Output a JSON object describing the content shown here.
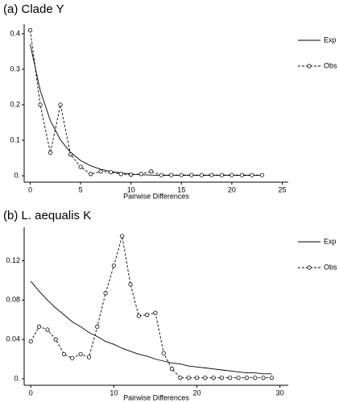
{
  "chart_data": [
    {
      "type": "line",
      "title": "(a) Clade Y",
      "x_label": "Pairwise Differences",
      "x": [
        0,
        1,
        2,
        3,
        4,
        5,
        6,
        7,
        8,
        9,
        10,
        11,
        12,
        13,
        14,
        15,
        16,
        17,
        18,
        19,
        20,
        21,
        22,
        23
      ],
      "xlim": [
        -0.6,
        25.6
      ],
      "xticks": [
        0,
        5,
        10,
        15,
        20,
        25
      ],
      "ylim": [
        -0.018,
        0.427
      ],
      "yticks": [
        {
          "value": 0,
          "label": "0."
        },
        0.1,
        0.2,
        0.3,
        0.4
      ],
      "series": [
        {
          "name": "Exp",
          "color": "#000000",
          "dashed": false,
          "markers": false,
          "values": [
            0.37,
            0.24,
            0.156,
            0.101,
            0.066,
            0.043,
            0.028,
            0.018,
            0.012,
            0.008,
            0.005,
            0.003,
            0.002,
            0.001,
            0.001,
            0.001,
            0.001,
            0.001,
            0.001,
            0.001,
            0.001,
            0.001,
            0.001,
            0.001
          ]
        },
        {
          "name": "Obs",
          "color": "#000000",
          "dashed": true,
          "markers": true,
          "values": [
            0.41,
            0.2,
            0.065,
            0.2,
            0.06,
            0.025,
            0.005,
            0.012,
            0.01,
            0.005,
            0.003,
            0.005,
            0.012,
            0.002,
            0.002,
            0.002,
            0.002,
            0.002,
            0.002,
            0.002,
            0.002,
            0.002,
            0.002,
            0.002
          ]
        }
      ]
    },
    {
      "type": "line",
      "title": "(b) L. aequalis K",
      "x_label": "Pairwise Differences",
      "x": [
        0,
        1,
        2,
        3,
        4,
        5,
        6,
        7,
        8,
        9,
        10,
        11,
        12,
        13,
        14,
        15,
        16,
        17,
        18,
        19,
        20,
        21,
        22,
        23,
        24,
        25,
        26,
        27,
        28,
        29
      ],
      "xlim": [
        -0.8,
        31
      ],
      "xticks": [
        0,
        10,
        20,
        30
      ],
      "ylim": [
        -0.0066,
        0.154
      ],
      "yticks": [
        {
          "value": 0,
          "label": "0."
        },
        0.04,
        0.08,
        0.12
      ],
      "series": [
        {
          "name": "Exp",
          "color": "#000000",
          "dashed": false,
          "markers": false,
          "values": [
            0.099,
            0.089,
            0.08,
            0.072,
            0.065,
            0.058,
            0.053,
            0.047,
            0.043,
            0.038,
            0.035,
            0.031,
            0.028,
            0.025,
            0.023,
            0.02,
            0.018,
            0.016,
            0.015,
            0.013,
            0.012,
            0.011,
            0.01,
            0.009,
            0.008,
            0.007,
            0.006,
            0.006,
            0.005,
            0.005
          ]
        },
        {
          "name": "Obs",
          "color": "#000000",
          "dashed": true,
          "markers": true,
          "values": [
            0.038,
            0.053,
            0.05,
            0.04,
            0.025,
            0.021,
            0.025,
            0.022,
            0.053,
            0.087,
            0.115,
            0.145,
            0.096,
            0.064,
            0.065,
            0.067,
            0.026,
            0.01,
            0.001,
            0.001,
            0.001,
            0.001,
            0.001,
            0.001,
            0.001,
            0.001,
            0.001,
            0.001,
            0.001,
            0.001
          ]
        }
      ]
    }
  ]
}
